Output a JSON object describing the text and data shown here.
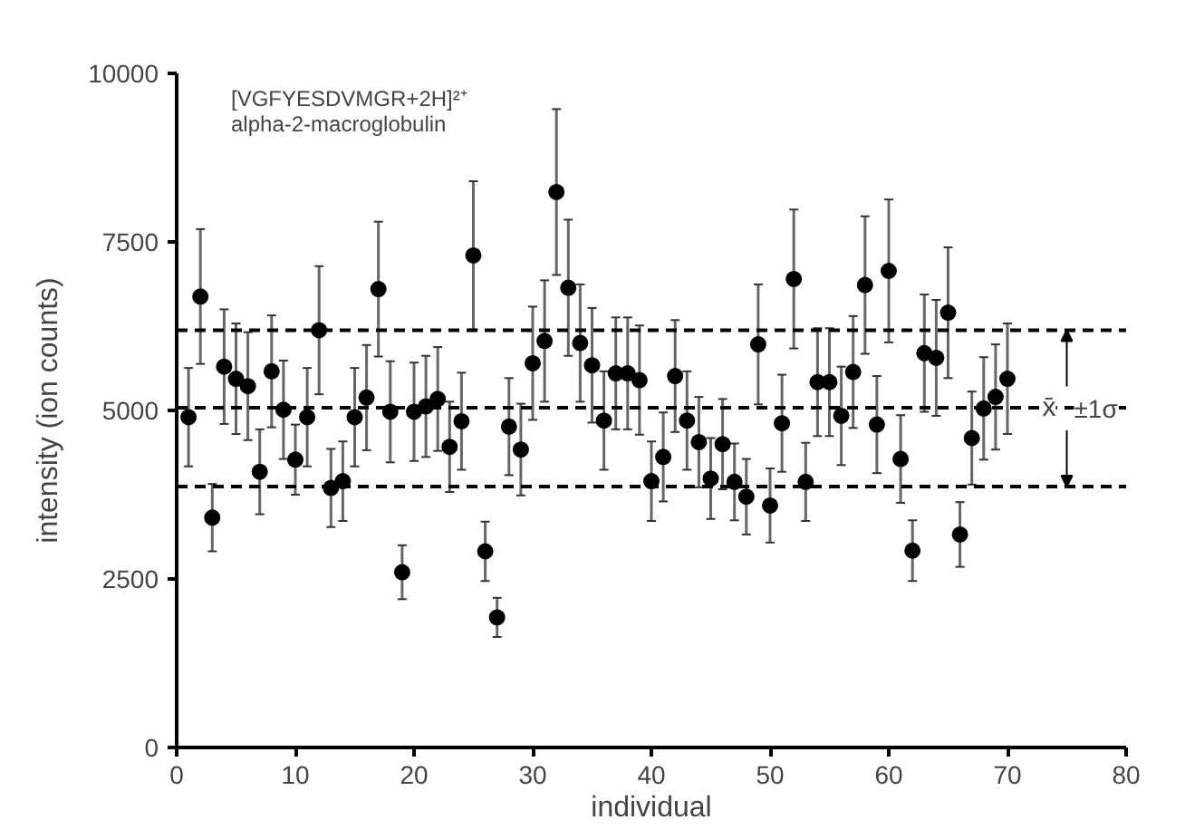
{
  "chart_data": {
    "type": "scatter",
    "title": "[VGFYESDVMGR+2H]²⁺",
    "subtitle": "alpha-2-macroglobulin",
    "xlabel": "individual",
    "ylabel": "intensity (ion counts)",
    "x": [
      1,
      2,
      3,
      4,
      5,
      6,
      7,
      8,
      9,
      10,
      11,
      12,
      13,
      14,
      15,
      16,
      17,
      18,
      19,
      20,
      21,
      22,
      23,
      24,
      25,
      26,
      27,
      28,
      29,
      30,
      31,
      32,
      33,
      34,
      35,
      36,
      37,
      38,
      39,
      40,
      41,
      42,
      43,
      44,
      45,
      46,
      47,
      48,
      49,
      50,
      51,
      52,
      53,
      54,
      55,
      56,
      57,
      58,
      59,
      60,
      61,
      62,
      63,
      64,
      65,
      66,
      67,
      68,
      69,
      70
    ],
    "series": [
      {
        "color": "#000000",
        "values": [
          4900,
          6690,
          3410,
          5650,
          5470,
          5360,
          4090,
          5580,
          5010,
          4270,
          4900,
          6190,
          3850,
          3950,
          4900,
          5190,
          6800,
          4980,
          2600,
          4980,
          5060,
          5170,
          4460,
          4840,
          7300,
          2910,
          1930,
          4760,
          4420,
          5700,
          6030,
          8240,
          6820,
          6000,
          5670,
          4850,
          5550,
          5550,
          5450,
          3950,
          4310,
          5510,
          4850,
          4530,
          3990,
          4500,
          3940,
          3720,
          5980,
          3590,
          4810,
          6950,
          3940,
          5420,
          5420,
          4920,
          5570,
          6860,
          4790,
          7070,
          4280,
          2920,
          5850,
          5780,
          6450,
          3160,
          4590,
          5030,
          5200,
          5470
        ],
        "errors": [
          730,
          1000,
          500,
          850,
          820,
          800,
          630,
          830,
          730,
          520,
          730,
          950,
          580,
          590,
          730,
          780,
          1000,
          750,
          400,
          730,
          750,
          770,
          670,
          720,
          1100,
          440,
          290,
          720,
          680,
          840,
          900,
          1230,
          1010,
          870,
          850,
          730,
          830,
          830,
          810,
          590,
          660,
          830,
          730,
          670,
          600,
          670,
          570,
          560,
          890,
          550,
          720,
          1030,
          580,
          800,
          800,
          730,
          830,
          1020,
          720,
          1060,
          650,
          450,
          870,
          860,
          970,
          480,
          690,
          760,
          780,
          820
        ]
      }
    ],
    "xlim": [
      0,
      80
    ],
    "xticks": [
      0,
      10,
      20,
      30,
      40,
      50,
      60,
      70,
      80
    ],
    "ylim": [
      0,
      10000
    ],
    "yticks": [
      0,
      2500,
      5000,
      7500,
      10000
    ],
    "ref_lines": [
      {
        "axis": "y",
        "value": 6190,
        "label": null,
        "line_style": "dashed",
        "color": "#000000"
      },
      {
        "axis": "y",
        "value": 5040,
        "label": "x̄",
        "line_style": "dashed",
        "color": "#000000"
      },
      {
        "axis": "y",
        "value": 3870,
        "label": null,
        "line_style": "dashed",
        "color": "#000000"
      }
    ],
    "annotations": [
      {
        "text": "±1σ",
        "x": 75,
        "y": 5030
      }
    ],
    "marker": "circle",
    "grid": false
  }
}
